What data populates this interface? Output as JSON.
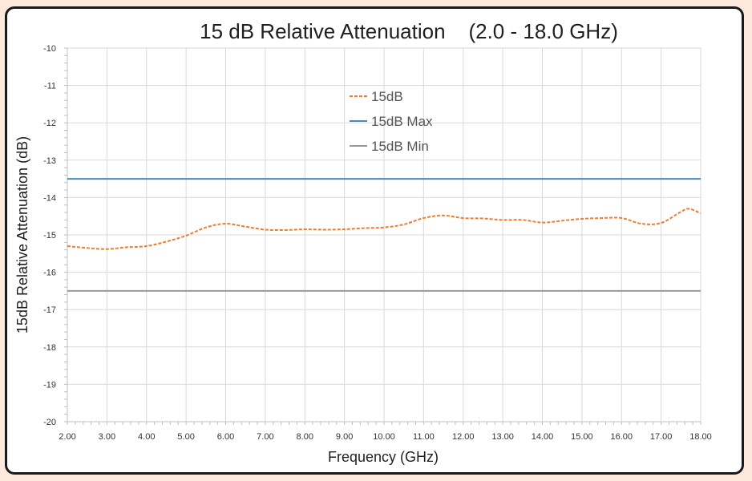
{
  "chart_data": {
    "type": "line",
    "title": "15 dB Relative Attenuation    (2.0 - 18.0 GHz)",
    "xlabel": "Frequency (GHz)",
    "ylabel": "15dB Relative Attenuation (dB)",
    "xlim": [
      2.0,
      18.0
    ],
    "ylim": [
      -20,
      -10
    ],
    "x_ticks": [
      "2.00",
      "3.00",
      "4.00",
      "5.00",
      "6.00",
      "7.00",
      "8.00",
      "9.00",
      "10.00",
      "11.00",
      "12.00",
      "13.00",
      "14.00",
      "15.00",
      "16.00",
      "17.00",
      "18.00"
    ],
    "y_ticks": [
      "-10",
      "-11",
      "-12",
      "-13",
      "-14",
      "-15",
      "-16",
      "-17",
      "-18",
      "-19",
      "-20"
    ],
    "grid": true,
    "legend_position": "top-center-inside",
    "series": [
      {
        "name": "15dB",
        "color": "#ed7d31",
        "style": "dashed",
        "x": [
          2.0,
          2.5,
          3.0,
          3.5,
          4.0,
          4.5,
          5.0,
          5.5,
          6.0,
          6.5,
          7.0,
          7.5,
          8.0,
          8.5,
          9.0,
          9.5,
          10.0,
          10.5,
          11.0,
          11.5,
          12.0,
          12.5,
          13.0,
          13.5,
          14.0,
          14.5,
          15.0,
          15.5,
          16.0,
          16.5,
          17.0,
          17.5,
          17.7,
          18.0
        ],
        "y": [
          -15.3,
          -15.35,
          -15.38,
          -15.33,
          -15.3,
          -15.18,
          -15.02,
          -14.8,
          -14.7,
          -14.78,
          -14.86,
          -14.87,
          -14.85,
          -14.86,
          -14.85,
          -14.82,
          -14.8,
          -14.72,
          -14.55,
          -14.48,
          -14.55,
          -14.56,
          -14.6,
          -14.6,
          -14.67,
          -14.62,
          -14.57,
          -14.55,
          -14.55,
          -14.7,
          -14.68,
          -14.38,
          -14.3,
          -14.42
        ]
      },
      {
        "name": "15dB Max",
        "color": "#4a8ab4",
        "style": "solid",
        "x": [
          2.0,
          18.0
        ],
        "y": [
          -13.5,
          -13.5
        ]
      },
      {
        "name": "15dB Min",
        "color": "#999999",
        "style": "solid",
        "x": [
          2.0,
          18.0
        ],
        "y": [
          -16.5,
          -16.5
        ]
      }
    ]
  }
}
